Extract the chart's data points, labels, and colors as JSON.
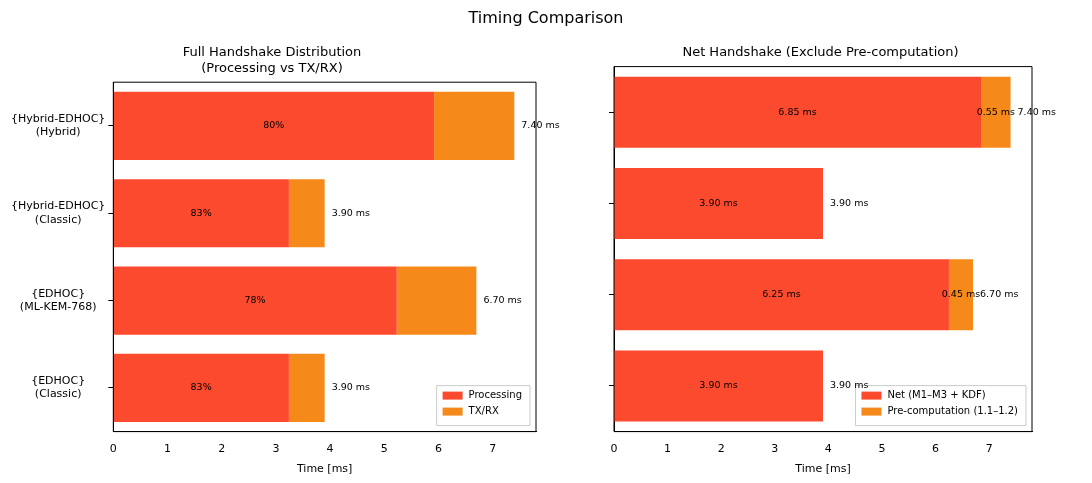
{
  "chart_data": [
    {
      "type": "bar",
      "title": "Timing Comparison\nFull Handshake Distribution\n(Processing vs TX/RX)",
      "xlabel": "Time [ms]",
      "orientation": "horizontal",
      "stacked": true,
      "categories": [
        "{Hybrid-EDHOC}\n(Hybrid)",
        "{Hybrid-EDHOC}\n(Classic)",
        "{EDHOC}\n(ML-KEM-768)",
        "{EDHOC}\n(Classic)"
      ],
      "series": [
        {
          "name": "Processing",
          "color": "#fc4a2e",
          "values": [
            5.92,
            3.24,
            5.23,
            3.24
          ]
        },
        {
          "name": "TX/RX",
          "color": "#f5891a",
          "values": [
            1.48,
            0.66,
            1.47,
            0.66
          ]
        }
      ],
      "annotations": [
        "80%",
        "83%",
        "78%",
        "83%"
      ],
      "totals": [
        "7.40 ms",
        "3.90 ms",
        "6.70 ms",
        "3.90 ms"
      ],
      "xlim": [
        0,
        7.8
      ],
      "xticks": [
        0,
        1,
        2,
        3,
        4,
        5,
        6,
        7
      ],
      "legend": "bottom right",
      "grid": false
    },
    {
      "type": "bar",
      "title": "Net Handshake (Exclude Pre-computation)",
      "xlabel": "Time [ms]",
      "orientation": "horizontal",
      "stacked": true,
      "categories": [
        null,
        null,
        null,
        null
      ],
      "tick_labels": "x",
      "series": [
        {
          "name": "Net (M1–M3 + KDF)",
          "color": "#fc4a2e",
          "values": [
            6.85,
            3.9,
            6.25,
            3.9
          ],
          "value_labels": [
            "6.85 ms",
            "3.90 ms",
            "6.25 ms",
            "3.90 ms"
          ]
        },
        {
          "name": "Pre-computation (1.1–1.2)",
          "color": "#f5891a",
          "values": [
            0.55,
            0,
            0.45,
            0
          ],
          "value_labels": [
            "0.55 ms",
            null,
            "0.45 ms",
            null
          ]
        }
      ],
      "totals": [
        "7.40 ms",
        "3.90 ms",
        "6.70 ms",
        "3.90 ms"
      ],
      "xlim": [
        0,
        7.8
      ],
      "xticks": [
        0,
        1,
        2,
        3,
        4,
        5,
        6,
        7
      ],
      "legend": "bottom right",
      "grid": false
    }
  ]
}
